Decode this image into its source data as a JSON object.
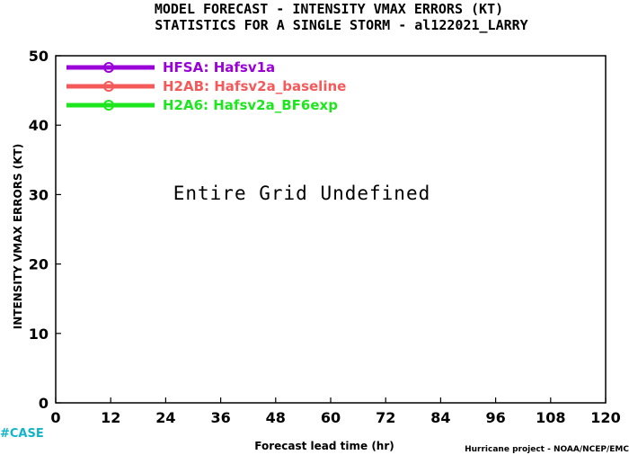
{
  "chart_data": {
    "type": "line",
    "title": "MODEL FORECAST - INTENSITY VMAX ERRORS (KT)",
    "subtitle": "STATISTICS FOR A SINGLE STORM - al122021_LARRY",
    "xlabel": "Forecast lead time (hr)",
    "ylabel": "INTENSITY VMAX ERRORS (KT)",
    "xlim": [
      0,
      120
    ],
    "ylim": [
      0,
      50
    ],
    "x_ticks": [
      0,
      12,
      24,
      36,
      48,
      60,
      72,
      84,
      96,
      108,
      120
    ],
    "y_ticks": [
      0,
      10,
      20,
      30,
      40,
      50
    ],
    "grid": false,
    "legend_position": "top-left",
    "series": [
      {
        "name": "HFSA: Hafsv1a",
        "color": "#9a00d8",
        "values": []
      },
      {
        "name": "H2AB: Hafsv2a_baseline",
        "color": "#f55a5a",
        "values": []
      },
      {
        "name": "H2A6: Hafsv2a_BF6exp",
        "color": "#1ee61e",
        "values": []
      }
    ],
    "annotations": [
      {
        "text": "Entire Grid Undefined"
      },
      {
        "text": "#CASE",
        "color": "#11b4c8"
      }
    ],
    "credit": "Hurricane project - NOAA/NCEP/EMC"
  }
}
